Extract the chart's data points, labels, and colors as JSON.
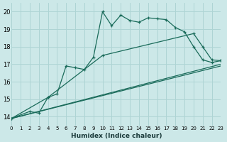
{
  "xlabel": "Humidex (Indice chaleur)",
  "background_color": "#cce8e8",
  "grid_color": "#aed4d4",
  "line_color": "#1a6b5a",
  "xlim": [
    0,
    23
  ],
  "ylim": [
    13.5,
    20.5
  ],
  "xticks": [
    0,
    1,
    2,
    3,
    4,
    5,
    6,
    7,
    8,
    9,
    10,
    11,
    12,
    13,
    14,
    15,
    16,
    17,
    18,
    19,
    20,
    21,
    22,
    23
  ],
  "yticks": [
    14,
    15,
    16,
    17,
    18,
    19,
    20
  ],
  "series1_x": [
    0,
    2,
    3,
    4,
    5,
    6,
    7,
    8,
    9,
    10,
    11,
    12,
    13,
    14,
    15,
    16,
    17,
    18,
    19,
    20,
    21,
    22,
    23
  ],
  "series1_y": [
    13.9,
    14.3,
    14.2,
    15.1,
    15.3,
    16.9,
    16.8,
    16.7,
    17.4,
    20.0,
    19.2,
    19.8,
    19.5,
    19.4,
    19.65,
    19.6,
    19.55,
    19.1,
    18.85,
    18.0,
    17.25,
    17.1,
    17.2
  ],
  "series2_x": [
    0,
    4,
    10,
    20,
    21,
    22,
    23
  ],
  "series2_y": [
    13.9,
    15.1,
    17.5,
    18.75,
    18.0,
    17.25,
    17.2
  ],
  "series3_x": [
    0,
    23
  ],
  "series3_y": [
    13.9,
    17.0
  ],
  "series4_x": [
    0,
    23
  ],
  "series4_y": [
    13.9,
    16.9
  ]
}
